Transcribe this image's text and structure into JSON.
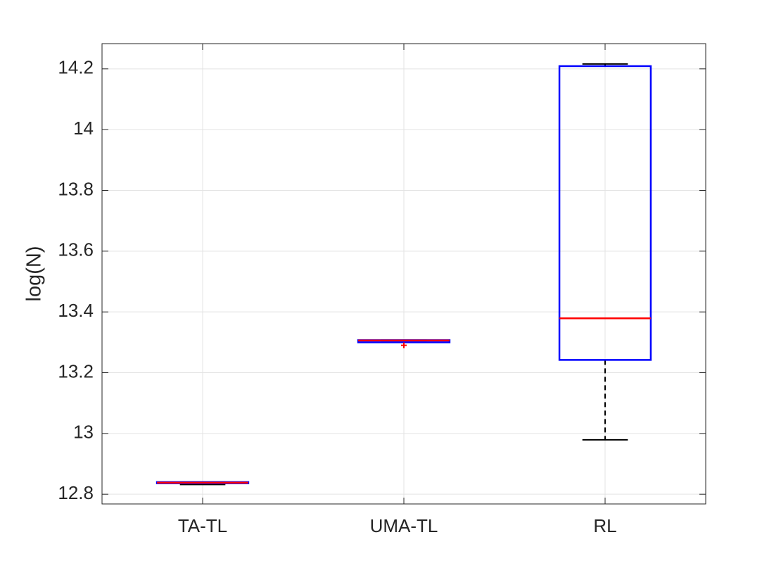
{
  "chart_data": {
    "type": "box",
    "ylabel": "log(N)",
    "categories": [
      "TA-TL",
      "UMA-TL",
      "RL"
    ],
    "boxes": [
      {
        "min": 12.832,
        "q1": 12.836,
        "median": 12.838,
        "q3": 12.84,
        "max": 12.84,
        "outliers": []
      },
      {
        "min": 13.3,
        "q1": 13.3,
        "median": 13.306,
        "q3": 13.307,
        "max": 13.307,
        "outliers": [
          13.29
        ]
      },
      {
        "min": 12.979,
        "q1": 13.242,
        "median": 13.379,
        "q3": 14.209,
        "max": 14.216,
        "outliers": []
      }
    ],
    "box_color": "#0000ff",
    "median_color": "#ff0000",
    "whisker_color": "#000000",
    "outlier_color": "#ff0000",
    "ylim": [
      12.768,
      14.283
    ],
    "yticks": [
      12.8,
      13,
      13.2,
      13.4,
      13.6,
      13.8,
      14,
      14.2
    ],
    "grid": true
  }
}
